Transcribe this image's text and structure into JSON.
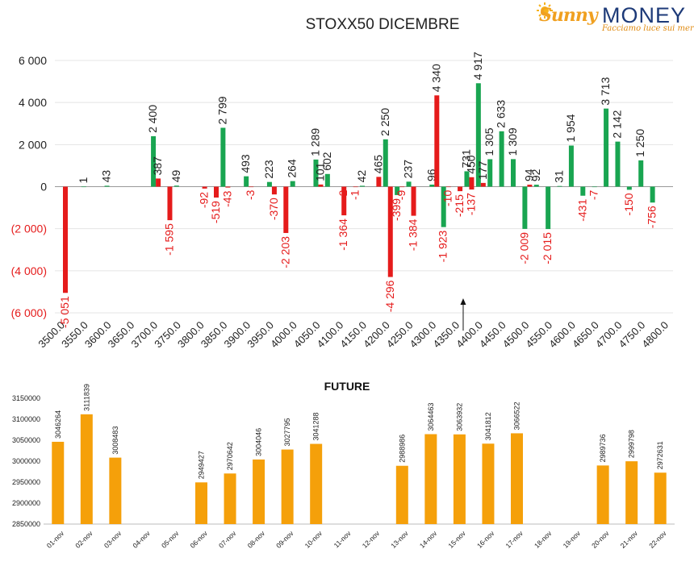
{
  "logo": {
    "brand_left": "Sunny",
    "brand_right": "MONEY",
    "tagline": "Facciamo luce sui mercati"
  },
  "colors": {
    "positive": "#19a551",
    "negative": "#e51b1b",
    "future_bar": "#f5a00a",
    "axis_text": "#333333"
  },
  "chart_data": [
    {
      "type": "bar",
      "title": "STOXX50 DICEMBRE",
      "ylim": [
        -6000,
        6000
      ],
      "y_ticks": [
        {
          "value": 6000,
          "label": "6 000"
        },
        {
          "value": 4000,
          "label": "4 000"
        },
        {
          "value": 2000,
          "label": "2 000"
        },
        {
          "value": 0,
          "label": "0"
        },
        {
          "value": -2000,
          "label": "(2 000)"
        },
        {
          "value": -4000,
          "label": "(4 000)"
        },
        {
          "value": -6000,
          "label": "(6 000)"
        }
      ],
      "categories": [
        "3500.0",
        "3550.0",
        "3600.0",
        "3650.0",
        "3700.0",
        "3750.0",
        "3800.0",
        "3850.0",
        "3900.0",
        "3950.0",
        "4000.0",
        "4050.0",
        "4100.0",
        "4150.0",
        "4200.0",
        "4250.0",
        "4300.0",
        "4350.0",
        "4400.0",
        "4450.0",
        "4500.0",
        "4550.0",
        "4600.0",
        "4650.0",
        "4700.0",
        "4750.0",
        "4800.0"
      ],
      "strike_step": 25,
      "current_level": 4362,
      "series": [
        {
          "color": "green",
          "points": [
            {
              "strike": 3550,
              "value": 1,
              "label": "1"
            },
            {
              "strike": 3600,
              "value": 43,
              "label": "43"
            },
            {
              "strike": 3700,
              "value": 2400,
              "label": "2 400"
            },
            {
              "strike": 3750,
              "value": 49,
              "label": "49"
            },
            {
              "strike": 3850,
              "value": 2799,
              "label": "2 799"
            },
            {
              "strike": 3900,
              "value": 493,
              "label": "493"
            },
            {
              "strike": 3950,
              "value": 223,
              "label": "223"
            },
            {
              "strike": 4000,
              "value": 264,
              "label": "264"
            },
            {
              "strike": 4050,
              "value": 1289,
              "label": "1 289"
            },
            {
              "strike": 4075,
              "value": 602,
              "label": "602"
            },
            {
              "strike": 4150,
              "value": 42,
              "label": "42"
            },
            {
              "strike": 4200,
              "value": 2250,
              "label": "2 250"
            },
            {
              "strike": 4225,
              "value": -399,
              "label": "-399"
            },
            {
              "strike": 4250,
              "value": 237,
              "label": "237"
            },
            {
              "strike": 4300,
              "value": 96,
              "label": "96"
            },
            {
              "strike": 4325,
              "value": -1923,
              "label": "-1 923"
            },
            {
              "strike": 4375,
              "value": 731,
              "label": "731"
            },
            {
              "strike": 4400,
              "value": 4917,
              "label": "4 917"
            },
            {
              "strike": 4425,
              "value": 1305,
              "label": "1 305"
            },
            {
              "strike": 4450,
              "value": 2633,
              "label": "2 633"
            },
            {
              "strike": 4475,
              "value": 1309,
              "label": "1 309"
            },
            {
              "strike": 4500,
              "value": -2009,
              "label": "-2 009"
            },
            {
              "strike": 4525,
              "value": 92,
              "label": "92"
            },
            {
              "strike": 4550,
              "value": -2015,
              "label": "-2 015"
            },
            {
              "strike": 4575,
              "value": 31,
              "label": "31"
            },
            {
              "strike": 4600,
              "value": 1954,
              "label": "1 954"
            },
            {
              "strike": 4625,
              "value": -431,
              "label": "-431"
            },
            {
              "strike": 4650,
              "value": -7,
              "label": "-7"
            },
            {
              "strike": 4675,
              "value": 3713,
              "label": "3 713"
            },
            {
              "strike": 4700,
              "value": 2142,
              "label": "2 142"
            },
            {
              "strike": 4725,
              "value": -150,
              "label": "-150"
            },
            {
              "strike": 4750,
              "value": 1250,
              "label": "1 250"
            },
            {
              "strike": 4775,
              "value": -756,
              "label": "-756"
            }
          ]
        },
        {
          "color": "red",
          "points": [
            {
              "strike": 3500,
              "value": -5051,
              "label": "-5 051"
            },
            {
              "strike": 3700,
              "value": 387,
              "label": "387"
            },
            {
              "strike": 3725,
              "value": -1595,
              "label": "-1 595"
            },
            {
              "strike": 3800,
              "value": -92,
              "label": "-92"
            },
            {
              "strike": 3825,
              "value": -519,
              "label": "-519"
            },
            {
              "strike": 3850,
              "value": -43,
              "label": "-43"
            },
            {
              "strike": 3900,
              "value": -3,
              "label": "-3"
            },
            {
              "strike": 3950,
              "value": -370,
              "label": "-370"
            },
            {
              "strike": 3975,
              "value": -2203,
              "label": "-2 203"
            },
            {
              "strike": 4050,
              "value": 101,
              "label": "101"
            },
            {
              "strike": 4100,
              "value": -2,
              "label": "-2"
            },
            {
              "strike": 4100,
              "value": -1364,
              "label": "-1 364"
            },
            {
              "strike": 4125,
              "value": -1,
              "label": "-1"
            },
            {
              "strike": 4175,
              "value": 465,
              "label": "465"
            },
            {
              "strike": 4200,
              "value": -4296,
              "label": "-4 296"
            },
            {
              "strike": 4225,
              "value": -9,
              "label": "-9"
            },
            {
              "strike": 4250,
              "value": -1384,
              "label": "-1 384"
            },
            {
              "strike": 4300,
              "value": 4340,
              "label": "4 340"
            },
            {
              "strike": 4325,
              "value": -10,
              "label": "-10"
            },
            {
              "strike": 4350,
              "value": -215,
              "label": "-215"
            },
            {
              "strike": 4375,
              "value": 450,
              "label": "450"
            },
            {
              "strike": 4375,
              "value": -137,
              "label": "-137"
            },
            {
              "strike": 4400,
              "value": 177,
              "label": "177"
            },
            {
              "strike": 4500,
              "value": 94,
              "label": "94"
            }
          ]
        }
      ]
    },
    {
      "type": "bar",
      "title": "FUTURE",
      "ylim": [
        2850000,
        3150000
      ],
      "y_ticks": [
        {
          "value": 3150000,
          "label": "3150000"
        },
        {
          "value": 3100000,
          "label": "3100000"
        },
        {
          "value": 3050000,
          "label": "3050000"
        },
        {
          "value": 3000000,
          "label": "3000000"
        },
        {
          "value": 2950000,
          "label": "2950000"
        },
        {
          "value": 2900000,
          "label": "2900000"
        },
        {
          "value": 2850000,
          "label": "2850000"
        }
      ],
      "categories": [
        "01-nov",
        "02-nov",
        "03-nov",
        "04-nov",
        "05-nov",
        "06-nov",
        "07-nov",
        "08-nov",
        "09-nov",
        "10-nov",
        "11-nov",
        "12-nov",
        "13-nov",
        "14-nov",
        "15-nov",
        "16-nov",
        "17-nov",
        "18-nov",
        "19-nov",
        "20-nov",
        "21-nov",
        "22-nov"
      ],
      "values": [
        3046264,
        3111839,
        3008483,
        null,
        null,
        2949427,
        2970642,
        3004046,
        3027795,
        3041288,
        null,
        null,
        2988986,
        3064463,
        3063932,
        3041812,
        3066522,
        null,
        null,
        2989736,
        2999798,
        2972631
      ],
      "value_labels": [
        "3046264",
        "3111839",
        "3008483",
        "",
        "",
        "2949427",
        "2970642",
        "3004046",
        "3027795",
        "3041288",
        "",
        "",
        "2988986",
        "3064463",
        "3063932",
        "3041812",
        "3066522",
        "",
        "",
        "2989736",
        "2999798",
        "2972631"
      ]
    }
  ]
}
